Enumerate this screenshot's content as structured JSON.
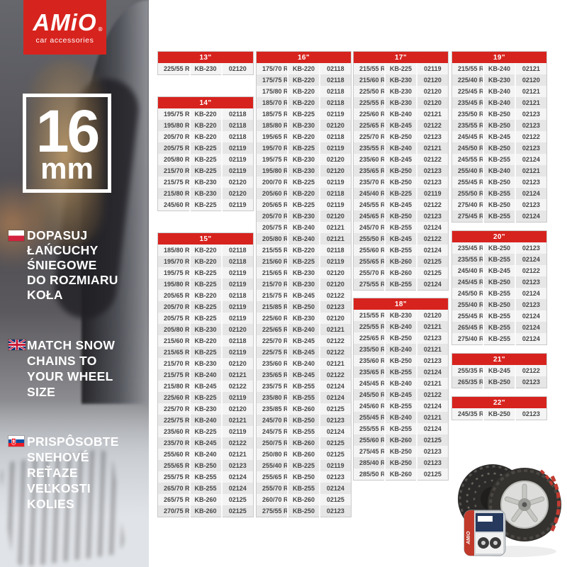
{
  "brand": {
    "name": "AMiO",
    "registered": "®",
    "tagline": "car accessories"
  },
  "badge": {
    "size": "16",
    "unit": "mm"
  },
  "messages": [
    {
      "lang": "pl",
      "flag": "poland-flag",
      "lines": [
        "DOPASUJ",
        "ŁAŃCUCHY",
        "ŚNIEGOWE",
        "DO ROZMIARU",
        "KOŁA"
      ]
    },
    {
      "lang": "en",
      "flag": "uk-flag",
      "lines": [
        "MATCH SNOW",
        "CHAINS TO",
        "YOUR WHEEL",
        "SIZE"
      ]
    },
    {
      "lang": "sk",
      "flag": "slovakia-flag",
      "lines": [
        "PRISPÔSOBTE",
        "SNEHOVÉ",
        "REŤAZE",
        "VEĽKOSTI",
        "KOLIES"
      ]
    }
  ],
  "product": {
    "bag_brand": "AMiO"
  },
  "colors": {
    "accent_red": "#d7231e",
    "row_light": "#f4f4f4",
    "row_dark": "#e6e6e6",
    "text_dark": "#454545"
  },
  "tables": [
    {
      "title": "13\"",
      "rows": [
        [
          "225/55 R13",
          "KB-230",
          "02120"
        ]
      ]
    },
    {
      "title": "14\"",
      "rows": [
        [
          "195/75 R14",
          "KB-220",
          "02118"
        ],
        [
          "195/80 R14",
          "KB-220",
          "02118"
        ],
        [
          "205/70 R14",
          "KB-220",
          "02118"
        ],
        [
          "205/75 R14",
          "KB-225",
          "02119"
        ],
        [
          "205/80 R14",
          "KB-225",
          "02119"
        ],
        [
          "215/70 R14",
          "KB-225",
          "02119"
        ],
        [
          "215/75 R14",
          "KB-230",
          "02120"
        ],
        [
          "215/80 R14",
          "KB-230",
          "02120"
        ],
        [
          "245/60 R14",
          "KB-225",
          "02119"
        ]
      ]
    },
    {
      "title": "15\"",
      "rows": [
        [
          "185/80 R15",
          "KB-220",
          "02118"
        ],
        [
          "195/70 R15",
          "KB-220",
          "02118"
        ],
        [
          "195/75 R15",
          "KB-225",
          "02119"
        ],
        [
          "195/80 R15",
          "KB-225",
          "02119"
        ],
        [
          "205/65 R15",
          "KB-220",
          "02118"
        ],
        [
          "205/70 R15",
          "KB-225",
          "02119"
        ],
        [
          "205/75 R15",
          "KB-225",
          "02119"
        ],
        [
          "205/80 R15",
          "KB-230",
          "02120"
        ],
        [
          "215/60 R15",
          "KB-220",
          "02118"
        ],
        [
          "215/65 R15",
          "KB-225",
          "02119"
        ],
        [
          "215/70 R15",
          "KB-230",
          "02120"
        ],
        [
          "215/75 R15",
          "KB-240",
          "02121"
        ],
        [
          "215/80 R15",
          "KB-245",
          "02122"
        ],
        [
          "225/60 R15",
          "KB-225",
          "02119"
        ],
        [
          "225/70 R15",
          "KB-230",
          "02120"
        ],
        [
          "225/75 R15",
          "KB-240",
          "02121"
        ],
        [
          "235/60 R15",
          "KB-225",
          "02119"
        ],
        [
          "235/70 R15",
          "KB-245",
          "02122"
        ],
        [
          "255/60 R15",
          "KB-240",
          "02121"
        ],
        [
          "255/65 R15",
          "KB-250",
          "02123"
        ],
        [
          "255/75 R15",
          "KB-255",
          "02124"
        ],
        [
          "265/70 R15",
          "KB-255",
          "02124"
        ],
        [
          "265/75 R15",
          "KB-260",
          "02125"
        ],
        [
          "270/75 R15",
          "KB-260",
          "02125"
        ]
      ]
    },
    {
      "title": "16\"",
      "rows": [
        [
          "175/70 R16",
          "KB-220",
          "02118"
        ],
        [
          "175/75 R16",
          "KB-220",
          "02118"
        ],
        [
          "175/80 R16",
          "KB-220",
          "02118"
        ],
        [
          "185/70 R16",
          "KB-220",
          "02118"
        ],
        [
          "185/75 R16",
          "KB-225",
          "02119"
        ],
        [
          "185/80 R16",
          "KB-230",
          "02120"
        ],
        [
          "195/65 R16",
          "KB-220",
          "02118"
        ],
        [
          "195/70 R16",
          "KB-225",
          "02119"
        ],
        [
          "195/75 R16",
          "KB-230",
          "02120"
        ],
        [
          "195/80 R16",
          "KB-230",
          "02120"
        ],
        [
          "200/70 R16",
          "KB-225",
          "02119"
        ],
        [
          "205/60 R16",
          "KB-220",
          "02118"
        ],
        [
          "205/65 R16",
          "KB-225",
          "02119"
        ],
        [
          "205/70 R16",
          "KB-230",
          "02120"
        ],
        [
          "205/75 R16",
          "KB-240",
          "02121"
        ],
        [
          "205/80 R16",
          "KB-240",
          "02121"
        ],
        [
          "215/55 R16",
          "KB-220",
          "02118"
        ],
        [
          "215/60 R16",
          "KB-225",
          "02119"
        ],
        [
          "215/65 R16",
          "KB-230",
          "02120"
        ],
        [
          "215/70 R16",
          "KB-230",
          "02120"
        ],
        [
          "215/75 R16",
          "KB-245",
          "02122"
        ],
        [
          "215/85 R16",
          "KB-250",
          "02123"
        ],
        [
          "225/60 R16",
          "KB-230",
          "02120"
        ],
        [
          "225/65 R16",
          "KB-240",
          "02121"
        ],
        [
          "225/70 R16",
          "KB-245",
          "02122"
        ],
        [
          "225/75 R16",
          "KB-245",
          "02122"
        ],
        [
          "235/60 R16",
          "KB-240",
          "02121"
        ],
        [
          "235/65 R16",
          "KB-245",
          "02122"
        ],
        [
          "235/75 R16",
          "KB-255",
          "02124"
        ],
        [
          "235/80 R16",
          "KB-255",
          "02124"
        ],
        [
          "235/85 R16",
          "KB-260",
          "02125"
        ],
        [
          "245/70 R16",
          "KB-250",
          "02123"
        ],
        [
          "245/75 R16",
          "KB-255",
          "02124"
        ],
        [
          "250/75 R16",
          "KB-260",
          "02125"
        ],
        [
          "250/80 R16",
          "KB-260",
          "02125"
        ],
        [
          "255/40 R16",
          "KB-225",
          "02119"
        ],
        [
          "255/65 R16",
          "KB-250",
          "02123"
        ],
        [
          "255/70 R16",
          "KB-255",
          "02124"
        ],
        [
          "260/70 R16",
          "KB-260",
          "02125"
        ],
        [
          "275/55 R16",
          "KB-250",
          "02123"
        ]
      ]
    },
    {
      "title": "17\"",
      "rows": [
        [
          "215/55 R17",
          "KB-225",
          "02119"
        ],
        [
          "215/60 R17",
          "KB-230",
          "02120"
        ],
        [
          "225/50 R17",
          "KB-230",
          "02120"
        ],
        [
          "225/55 R17",
          "KB-230",
          "02120"
        ],
        [
          "225/60 R17",
          "KB-240",
          "02121"
        ],
        [
          "225/65 R17",
          "KB-245",
          "02122"
        ],
        [
          "225/70 R17",
          "KB-250",
          "02123"
        ],
        [
          "235/55 R17",
          "KB-240",
          "02121"
        ],
        [
          "235/60 R17",
          "KB-245",
          "02122"
        ],
        [
          "235/65 R17",
          "KB-250",
          "02123"
        ],
        [
          "235/70 R17",
          "KB-250",
          "02123"
        ],
        [
          "245/40 R17",
          "KB-225",
          "02119"
        ],
        [
          "245/55 R17",
          "KB-245",
          "02122"
        ],
        [
          "245/65 R17",
          "KB-250",
          "02123"
        ],
        [
          "245/70 R17",
          "KB-255",
          "02124"
        ],
        [
          "255/50 R17",
          "KB-245",
          "02122"
        ],
        [
          "255/60 R17",
          "KB-255",
          "02124"
        ],
        [
          "255/65 R17",
          "KB-260",
          "02125"
        ],
        [
          "255/70 R17",
          "KB-260",
          "02125"
        ],
        [
          "275/55 R17",
          "KB-255",
          "02124"
        ]
      ]
    },
    {
      "title": "18\"",
      "rows": [
        [
          "215/55 R18",
          "KB-230",
          "02120"
        ],
        [
          "225/55 R18",
          "KB-240",
          "02121"
        ],
        [
          "225/65 R18",
          "KB-250",
          "02123"
        ],
        [
          "235/50 R18",
          "KB-240",
          "02121"
        ],
        [
          "235/60 R18",
          "KB-250",
          "02123"
        ],
        [
          "235/65 R18",
          "KB-255",
          "02124"
        ],
        [
          "245/45 R18",
          "KB-240",
          "02121"
        ],
        [
          "245/50 R18",
          "KB-245",
          "02122"
        ],
        [
          "245/60 R18",
          "KB-255",
          "02124"
        ],
        [
          "255/45 R18",
          "KB-240",
          "02121"
        ],
        [
          "255/55 R18",
          "KB-255",
          "02124"
        ],
        [
          "255/60 R18",
          "KB-260",
          "02125"
        ],
        [
          "275/45 R18",
          "KB-250",
          "02123"
        ],
        [
          "285/40 R18",
          "KB-250",
          "02123"
        ],
        [
          "285/50 R18",
          "KB-260",
          "02125"
        ]
      ]
    },
    {
      "title": "19\"",
      "rows": [
        [
          "215/55 R19",
          "KB-240",
          "02121"
        ],
        [
          "225/40 R19",
          "KB-230",
          "02120"
        ],
        [
          "225/45 R19",
          "KB-240",
          "02121"
        ],
        [
          "235/45 R19",
          "KB-240",
          "02121"
        ],
        [
          "235/50 R19",
          "KB-250",
          "02123"
        ],
        [
          "235/55 R19",
          "KB-250",
          "02123"
        ],
        [
          "245/45 R19",
          "KB-245",
          "02122"
        ],
        [
          "245/50 R19",
          "KB-250",
          "02123"
        ],
        [
          "245/55 R19",
          "KB-255",
          "02124"
        ],
        [
          "255/40 R19",
          "KB-240",
          "02121"
        ],
        [
          "255/45 R19",
          "KB-250",
          "02123"
        ],
        [
          "255/50 R19",
          "KB-255",
          "02124"
        ],
        [
          "275/40 R19",
          "KB-250",
          "02123"
        ],
        [
          "275/45 R19",
          "KB-255",
          "02124"
        ]
      ]
    },
    {
      "title": "20\"",
      "rows": [
        [
          "235/45 R20",
          "KB-250",
          "02123"
        ],
        [
          "235/55 R20",
          "KB-255",
          "02124"
        ],
        [
          "245/40 R20",
          "KB-245",
          "02122"
        ],
        [
          "245/45 R20",
          "KB-250",
          "02123"
        ],
        [
          "245/50 R20",
          "KB-255",
          "02124"
        ],
        [
          "255/40 R20",
          "KB-250",
          "02123"
        ],
        [
          "255/45 R20",
          "KB-255",
          "02124"
        ],
        [
          "265/45 R20",
          "KB-255",
          "02124"
        ],
        [
          "275/40 R20",
          "KB-255",
          "02124"
        ]
      ]
    },
    {
      "title": "21\"",
      "rows": [
        [
          "255/35 R21",
          "KB-245",
          "02122"
        ],
        [
          "265/35 R21",
          "KB-250",
          "02123"
        ]
      ]
    },
    {
      "title": "22\"",
      "rows": [
        [
          "245/35 R22",
          "KB-250",
          "02123"
        ]
      ]
    }
  ]
}
